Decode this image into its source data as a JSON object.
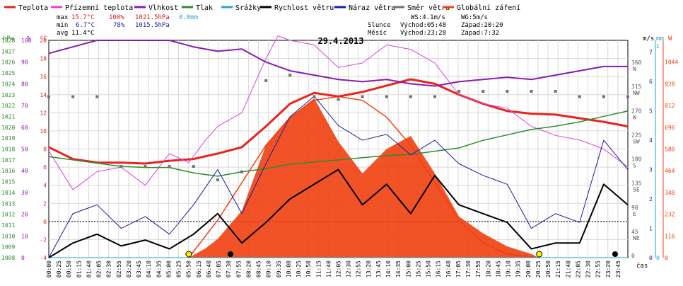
{
  "title": "29.4.2013",
  "legend": [
    {
      "label": "Teplota",
      "color": "#e8241c"
    },
    {
      "label": "Přízemní teplota",
      "color": "#e040e0"
    },
    {
      "label": "Vlhkost",
      "color": "#8a1ab0"
    },
    {
      "label": "Tlak",
      "color": "#2e8c2e"
    },
    {
      "label": "Srážky",
      "color": "#20a8c8"
    },
    {
      "label": "Rychlost větru",
      "color": "#000000"
    },
    {
      "label": "Náraz větru",
      "color": "#1c1ca0"
    },
    {
      "label": "Směr větru",
      "color": "#707070"
    },
    {
      "label": "Globální záření",
      "color": "#f04010"
    }
  ],
  "stats": {
    "max": {
      "label": "max",
      "temp": "15.7°C",
      "hum": "100%",
      "press": "1021.5hPa",
      "rain": "0.0mm"
    },
    "min": {
      "label": "min",
      "temp": "6.7°C",
      "hum": "78%",
      "press": "1015.5hPa"
    },
    "avg": {
      "label": "avg",
      "temp": "11.4°C"
    }
  },
  "wind_info": {
    "ws": "WS:4.1m/s",
    "wg": "WG:5m/s"
  },
  "sun": {
    "label": "Slunce",
    "rise": "Východ:05:48",
    "set": "Západ:20:20"
  },
  "moon": {
    "label": "Měsíc",
    "rise": "Východ:23:28",
    "set": "Západ:7:32"
  },
  "axes": {
    "hpa": {
      "unit": "hPa",
      "ticks": [
        "1028",
        "1027",
        "1026",
        "1025",
        "1024",
        "1023",
        "1022",
        "1021",
        "1020",
        "1019",
        "1018",
        "1017",
        "1016",
        "1015",
        "1014",
        "1013",
        "1012",
        "1011",
        "1010",
        "1009",
        "1008"
      ],
      "range": [
        1008,
        1028
      ]
    },
    "pct": {
      "unit": "%",
      "ticks": [
        "100",
        "90",
        "80",
        "70",
        "60",
        "50",
        "40",
        "30",
        "20",
        "10",
        "0"
      ],
      "range": [
        0,
        100
      ]
    },
    "temp": {
      "unit": "°C",
      "ticks": [
        "20",
        "18",
        "16",
        "14",
        "12",
        "10",
        "8",
        "6",
        "4",
        "2",
        "0",
        "-2",
        "-4"
      ],
      "range": [
        -4,
        20
      ]
    },
    "dir": {
      "ticks": [
        {
          "deg": "360",
          "c": "N"
        },
        {
          "deg": "315",
          "c": "NW"
        },
        {
          "deg": "270",
          "c": "W"
        },
        {
          "deg": "225",
          "c": "SW"
        },
        {
          "deg": "180",
          "c": "S"
        },
        {
          "deg": "135",
          "c": "SE"
        },
        {
          "deg": "90",
          "c": "E"
        },
        {
          "deg": "45",
          "c": "NE"
        },
        {
          "deg": "0",
          "c": ""
        }
      ]
    },
    "ms": {
      "unit": "m/s",
      "ticks": [
        "7",
        "6",
        "5",
        "4",
        "3",
        "2",
        "1",
        "0"
      ],
      "range": [
        0,
        7
      ]
    },
    "mm": {
      "unit": "mm",
      "ticks": [
        "1",
        "0"
      ],
      "range": [
        0,
        1
      ]
    },
    "w": {
      "unit": "W",
      "ticks": [
        "1044",
        "928",
        "812",
        "696",
        "580",
        "464",
        "348",
        "232",
        "116",
        "0"
      ],
      "range": [
        0,
        1160
      ]
    },
    "time": {
      "unit": "čas",
      "ticks": [
        "00:00",
        "00:25",
        "00:50",
        "01:15",
        "01:40",
        "02:05",
        "02:30",
        "02:55",
        "03:20",
        "03:45",
        "04:10",
        "04:35",
        "05:00",
        "05:25",
        "05:50",
        "06:15",
        "06:40",
        "07:05",
        "07:30",
        "07:55",
        "08:20",
        "08:45",
        "09:10",
        "09:35",
        "10:00",
        "10:25",
        "10:50",
        "11:15",
        "11:40",
        "12:05",
        "12:30",
        "12:55",
        "13:20",
        "13:45",
        "14:10",
        "14:35",
        "15:00",
        "15:25",
        "15:50",
        "16:15",
        "16:40",
        "17:05",
        "17:30",
        "17:55",
        "18:20",
        "18:45",
        "19:10",
        "19:35",
        "20:00",
        "20:25",
        "20:50",
        "21:15",
        "21:40",
        "22:05",
        "22:30",
        "22:55",
        "23:20",
        "23:45"
      ]
    }
  },
  "chart_data": {
    "type": "line",
    "title": "29.4.2013",
    "x_unit": "hours",
    "xlim": [
      0,
      24
    ],
    "grid": true,
    "legend_position": "top",
    "series": [
      {
        "name": "Teplota",
        "unit": "°C",
        "axis": "temp",
        "x": [
          0,
          1,
          2,
          3,
          4,
          5,
          6,
          7,
          8,
          9,
          10,
          11,
          12,
          13,
          14,
          15,
          16,
          17,
          18,
          19,
          20,
          21,
          22,
          23,
          24
        ],
        "values": [
          8.2,
          6.9,
          6.5,
          6.5,
          6.4,
          6.7,
          6.9,
          7.5,
          8.2,
          10.5,
          13.0,
          14.2,
          13.8,
          14.3,
          15.0,
          15.7,
          15.2,
          14.0,
          13.0,
          12.2,
          11.9,
          11.8,
          11.4,
          11.0,
          10.5
        ]
      },
      {
        "name": "Přízemní teplota",
        "unit": "°C",
        "axis": "temp",
        "x": [
          0,
          1,
          2,
          3,
          4,
          5,
          5.8,
          6.5,
          7,
          8,
          9,
          9.5,
          10,
          11,
          12,
          13,
          14,
          15,
          16,
          17,
          18,
          19,
          20,
          21,
          22,
          23,
          24
        ],
        "values": [
          7.8,
          3.5,
          5.5,
          6.0,
          4.0,
          7.5,
          6.5,
          9.0,
          10.5,
          12.0,
          18.0,
          20.5,
          20.0,
          19.5,
          17.0,
          17.5,
          19.5,
          19.0,
          17.5,
          14.0,
          13.0,
          12.5,
          10.5,
          9.5,
          9.0,
          8.0,
          6.0
        ]
      },
      {
        "name": "Vlhkost",
        "unit": "%",
        "axis": "pct",
        "x": [
          0,
          1,
          2,
          3,
          4,
          5,
          6,
          7,
          8,
          9,
          10,
          11,
          12,
          13,
          14,
          15,
          16,
          17,
          18,
          19,
          20,
          21,
          22,
          23,
          24
        ],
        "values": [
          94,
          97,
          100,
          100,
          100,
          100,
          97,
          95,
          96,
          90,
          86,
          84,
          82,
          81,
          82,
          80,
          79,
          81,
          82,
          83,
          82,
          84,
          86,
          88,
          88
        ]
      },
      {
        "name": "Tlak",
        "unit": "hPa",
        "axis": "hpa",
        "x": [
          0,
          1,
          2,
          3,
          4,
          5,
          6,
          7,
          8,
          9,
          10,
          11,
          12,
          13,
          14,
          15,
          16,
          17,
          18,
          19,
          20,
          21,
          22,
          23,
          24
        ],
        "values": [
          1017.3,
          1017.0,
          1016.7,
          1016.4,
          1016.3,
          1016.3,
          1015.8,
          1015.5,
          1015.9,
          1016.2,
          1016.6,
          1016.8,
          1017.0,
          1017.2,
          1017.4,
          1017.5,
          1017.8,
          1018.1,
          1018.8,
          1019.3,
          1019.8,
          1020.1,
          1020.5,
          1021.0,
          1021.5
        ]
      },
      {
        "name": "Srážky",
        "unit": "mm",
        "axis": "mm",
        "x": [
          0,
          24
        ],
        "values": [
          0,
          0
        ]
      },
      {
        "name": "Rychlost větru",
        "unit": "m/s",
        "axis": "ms",
        "x": [
          0,
          1,
          2,
          3,
          4,
          5,
          6,
          7,
          8,
          9,
          10,
          11,
          12,
          13,
          14,
          15,
          16,
          17,
          18,
          19,
          20,
          21,
          22,
          23,
          24
        ],
        "values": [
          0,
          0.5,
          0.8,
          0.4,
          0.6,
          0.3,
          0.8,
          1.5,
          0.5,
          1.2,
          2.0,
          2.5,
          3.0,
          1.8,
          2.5,
          1.5,
          2.8,
          1.8,
          1.5,
          1.2,
          0.3,
          0.5,
          0.5,
          2.5,
          1.8
        ]
      },
      {
        "name": "Náraz větru",
        "unit": "m/s",
        "axis": "ms",
        "x": [
          0,
          1,
          2,
          3,
          4,
          5,
          6,
          7,
          8,
          9,
          10,
          11,
          12,
          13,
          14,
          15,
          16,
          17,
          18,
          19,
          20,
          21,
          22,
          23,
          24
        ],
        "values": [
          0,
          1.5,
          1.8,
          1.0,
          1.4,
          0.8,
          1.8,
          3.0,
          1.5,
          3.2,
          4.8,
          5.5,
          4.5,
          4.0,
          4.2,
          3.5,
          4.0,
          3.2,
          2.8,
          2.5,
          1.0,
          1.5,
          1.2,
          4.0,
          3.0
        ]
      },
      {
        "name": "Směr větru",
        "unit": "°",
        "axis": "dir",
        "x": [
          0,
          1,
          2,
          3,
          4,
          5,
          6,
          7,
          8,
          9,
          10,
          11,
          12,
          13,
          14,
          15,
          16,
          17,
          18,
          19,
          20,
          21,
          22,
          23,
          24
        ],
        "values": [
          300,
          300,
          300,
          170,
          170,
          170,
          170,
          145,
          160,
          330,
          340,
          300,
          295,
          300,
          300,
          300,
          300,
          310,
          310,
          310,
          310,
          310,
          300,
          300,
          300
        ]
      },
      {
        "name": "Globální záření",
        "unit": "W",
        "axis": "w",
        "x": [
          5.8,
          6.5,
          7,
          8,
          9,
          10,
          11,
          12,
          13,
          14,
          15,
          16,
          17,
          18,
          19,
          20,
          20.3
        ],
        "values": [
          0,
          50,
          100,
          250,
          600,
          750,
          850,
          620,
          450,
          580,
          650,
          450,
          220,
          130,
          60,
          20,
          0
        ]
      }
    ],
    "clear_sky_radiation": {
      "x": [
        5.8,
        7,
        8,
        9,
        10,
        11,
        12,
        13,
        14,
        15,
        16,
        17,
        18,
        19,
        20,
        20.3
      ],
      "values": [
        0,
        200,
        400,
        600,
        750,
        840,
        860,
        840,
        750,
        600,
        400,
        200,
        80,
        20,
        5,
        0
      ]
    }
  }
}
